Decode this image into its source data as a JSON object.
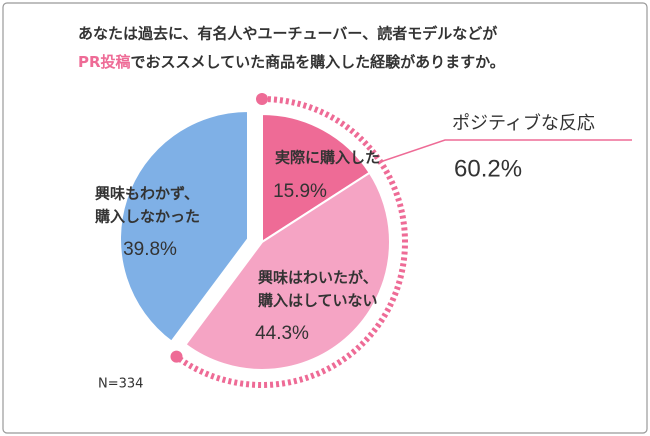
{
  "chart_data": {
    "type": "pie",
    "title": {
      "line1": "あなたは過去に、有名人やユーチューバー、読者モデルなどが",
      "highlight": "PR投稿",
      "line2": "でおススメしていた商品を購入した経験がありますか。"
    },
    "categories": [
      [
        "実際に購入した"
      ],
      [
        "興味はわいたが、",
        "購入はしていない"
      ],
      [
        "興味もわかず、",
        "購入しなかった"
      ]
    ],
    "values": [
      15.9,
      44.3,
      39.8
    ],
    "value_labels": [
      "15.9%",
      "44.3%",
      "39.8%"
    ],
    "colors": [
      "#ee6b96",
      "#f5a4c4",
      "#7fb0e6"
    ],
    "annotation": {
      "text": "ポジティブな反応",
      "value": "60.2%",
      "color": "#ee6b96"
    },
    "note": "N=334"
  }
}
